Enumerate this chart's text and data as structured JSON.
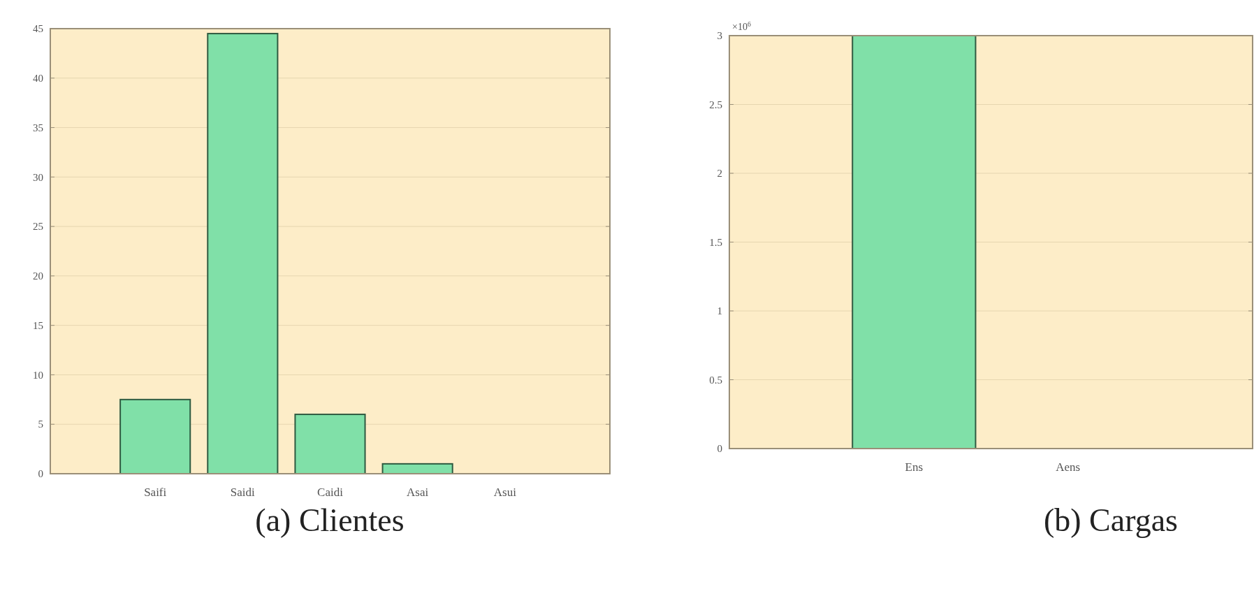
{
  "chart_data": [
    {
      "type": "bar",
      "title": "(a) Clientes",
      "categories": [
        "Saifi",
        "Saidi",
        "Caidi",
        "Asai",
        "Asui"
      ],
      "values": [
        7.5,
        44.5,
        6,
        1,
        0
      ],
      "color": "#80e0a8",
      "ylim": [
        0,
        45
      ],
      "yticks": [
        0,
        5,
        10,
        15,
        20,
        25,
        30,
        35,
        40,
        45
      ],
      "grid": true
    },
    {
      "type": "bar",
      "title": "(b) Cargas",
      "categories": [
        "Ens",
        "Aens"
      ],
      "values": [
        3,
        0
      ],
      "color": "#80e0a8",
      "ylim": [
        0,
        3
      ],
      "yticks": [
        0,
        0.5,
        1,
        1.5,
        2,
        2.5,
        3
      ],
      "annotations": [
        "×10$^{6}$"
      ],
      "grid": true
    }
  ]
}
